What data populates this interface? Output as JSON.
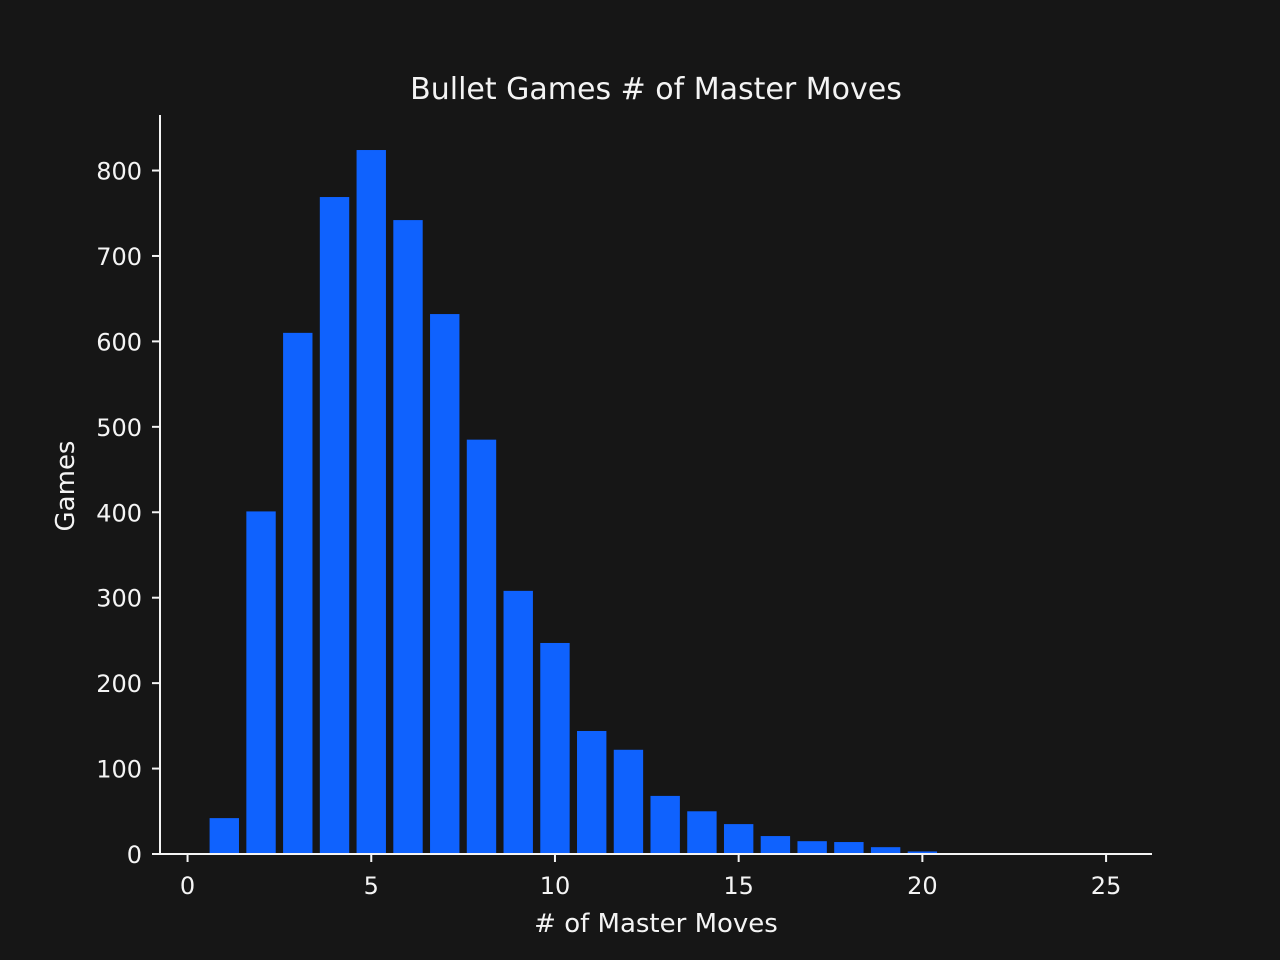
{
  "chart_data": {
    "type": "bar",
    "title": "Bullet Games # of Master Moves",
    "xlabel": "# of Master Moves",
    "ylabel": "Games",
    "x": [
      0,
      1,
      2,
      3,
      4,
      5,
      6,
      7,
      8,
      9,
      10,
      11,
      12,
      13,
      14,
      15,
      16,
      17,
      18,
      19,
      20,
      21,
      22,
      23,
      24,
      25
    ],
    "values": [
      0,
      42,
      401,
      610,
      769,
      824,
      742,
      632,
      485,
      308,
      247,
      144,
      122,
      68,
      50,
      35,
      21,
      15,
      14,
      8,
      3,
      0,
      0,
      0,
      0,
      0
    ],
    "xlim": [
      -0.75,
      26.25
    ],
    "ylim": [
      0,
      865
    ],
    "xticks": [
      0,
      5,
      10,
      15,
      20,
      25
    ],
    "yticks": [
      0,
      100,
      200,
      300,
      400,
      500,
      600,
      700,
      800
    ],
    "bar_color": "#0f62fe",
    "axis_color": "#f4f4f4",
    "background": "#161616",
    "grid": false
  }
}
